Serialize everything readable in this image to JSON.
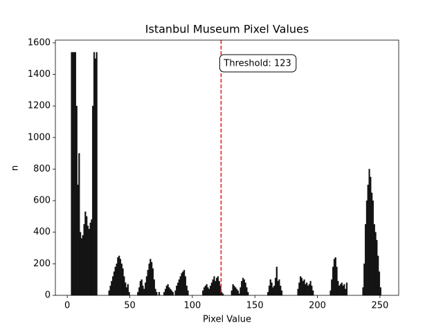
{
  "chart_data": {
    "type": "histogram",
    "title": "Istanbul Museum Pixel Values",
    "xlabel": "Pixel Value",
    "ylabel": "n",
    "color": "#111111",
    "bins": [
      3,
      4,
      5,
      6,
      7,
      8,
      9,
      10,
      11,
      12,
      13,
      14,
      15,
      16,
      17,
      18,
      19,
      20,
      21,
      22,
      23,
      24,
      25,
      26,
      27,
      28,
      29,
      30,
      31,
      32,
      33,
      34,
      35,
      36,
      37,
      38,
      39,
      40,
      41,
      42,
      43,
      44,
      45,
      46,
      47,
      48,
      49,
      50,
      51,
      52,
      53,
      54,
      55,
      56,
      57,
      58,
      59,
      60,
      61,
      62,
      63,
      64,
      65,
      66,
      67,
      68,
      69,
      70,
      71,
      72,
      73,
      74,
      75,
      76,
      77,
      78,
      79,
      80,
      81,
      82,
      83,
      84,
      85,
      86,
      87,
      88,
      89,
      90,
      91,
      92,
      93,
      94,
      95,
      96,
      97,
      98,
      99,
      100,
      101,
      102,
      103,
      104,
      105,
      106,
      107,
      108,
      109,
      110,
      111,
      112,
      113,
      114,
      115,
      116,
      117,
      118,
      119,
      120,
      121,
      122,
      123,
      124,
      125,
      126,
      127,
      128,
      129,
      130,
      131,
      132,
      133,
      134,
      135,
      136,
      137,
      138,
      139,
      140,
      141,
      142,
      143,
      144,
      145,
      146,
      147,
      148,
      149,
      150,
      151,
      152,
      153,
      154,
      155,
      156,
      157,
      158,
      159,
      160,
      161,
      162,
      163,
      164,
      165,
      166,
      167,
      168,
      169,
      170,
      171,
      172,
      173,
      174,
      175,
      176,
      177,
      178,
      179,
      180,
      181,
      182,
      183,
      184,
      185,
      186,
      187,
      188,
      189,
      190,
      191,
      192,
      193,
      194,
      195,
      196,
      197,
      198,
      199,
      200,
      201,
      202,
      203,
      204,
      205,
      206,
      207,
      208,
      209,
      210,
      211,
      212,
      213,
      214,
      215,
      216,
      217,
      218,
      219,
      220,
      221,
      222,
      223,
      224,
      225,
      226,
      227,
      228,
      229,
      230,
      231,
      232,
      233,
      234,
      235,
      236,
      237,
      238,
      239,
      240,
      241,
      242,
      243,
      244,
      245,
      246,
      247,
      248,
      249,
      250,
      251
    ],
    "values": [
      1540,
      1540,
      1540,
      1540,
      1200,
      700,
      900,
      400,
      360,
      380,
      450,
      530,
      500,
      440,
      420,
      460,
      480,
      1200,
      1540,
      1500,
      1540,
      0,
      0,
      0,
      0,
      0,
      0,
      0,
      0,
      0,
      30,
      60,
      90,
      120,
      150,
      180,
      200,
      240,
      250,
      230,
      200,
      170,
      120,
      80,
      50,
      70,
      20,
      0,
      0,
      0,
      0,
      0,
      0,
      20,
      50,
      90,
      100,
      60,
      40,
      80,
      120,
      160,
      200,
      230,
      210,
      170,
      100,
      40,
      20,
      0,
      20,
      0,
      0,
      0,
      20,
      40,
      60,
      70,
      50,
      40,
      30,
      20,
      0,
      30,
      60,
      80,
      100,
      120,
      140,
      150,
      160,
      120,
      60,
      30,
      0,
      0,
      0,
      0,
      0,
      0,
      0,
      0,
      0,
      0,
      0,
      30,
      50,
      60,
      70,
      50,
      40,
      60,
      80,
      100,
      120,
      90,
      110,
      120,
      90,
      60,
      20,
      10,
      0,
      0,
      0,
      0,
      0,
      0,
      30,
      70,
      60,
      50,
      40,
      30,
      10,
      50,
      90,
      110,
      100,
      80,
      50,
      20,
      0,
      0,
      0,
      0,
      0,
      0,
      0,
      0,
      0,
      0,
      0,
      0,
      0,
      0,
      0,
      20,
      60,
      100,
      80,
      50,
      60,
      110,
      180,
      90,
      100,
      60,
      30,
      0,
      0,
      0,
      0,
      0,
      0,
      0,
      0,
      0,
      0,
      0,
      0,
      40,
      80,
      120,
      110,
      90,
      100,
      70,
      80,
      60,
      70,
      90,
      60,
      30,
      0,
      0,
      0,
      0,
      0,
      0,
      0,
      0,
      0,
      0,
      0,
      0,
      0,
      30,
      100,
      180,
      230,
      240,
      180,
      90,
      60,
      70,
      80,
      60,
      70,
      40,
      80,
      0,
      0,
      0,
      0,
      0,
      0,
      0,
      0,
      0,
      0,
      0,
      0,
      50,
      200,
      450,
      600,
      700,
      800,
      750,
      650,
      600,
      450,
      400,
      350,
      250,
      150,
      50
    ],
    "threshold": 123,
    "threshold_color": "#d62728",
    "annotation": "Threshold: 123",
    "xlim": [
      -9.5,
      265
    ],
    "ylim": [
      0,
      1617
    ],
    "xticks": [
      0,
      50,
      100,
      150,
      200,
      250
    ],
    "yticks": [
      0,
      200,
      400,
      600,
      800,
      1000,
      1200,
      1400,
      1600
    ]
  }
}
